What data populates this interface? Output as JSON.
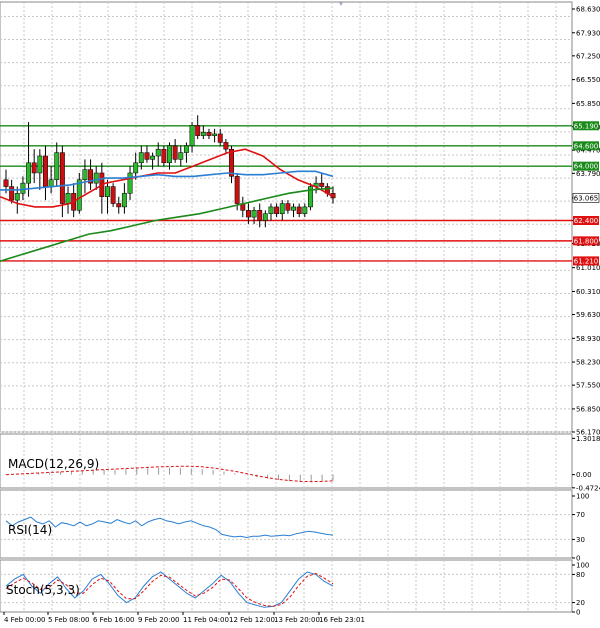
{
  "chart_data": [
    {
      "type": "candlestick",
      "panel": "price",
      "ylim": [
        56.17,
        68.63
      ],
      "y_ticks": [
        "68.630",
        "67.930",
        "67.250",
        "66.550",
        "65.850",
        "65.160",
        "64.470",
        "63.790",
        "63.065",
        "62.400",
        "61.720",
        "61.010",
        "60.310",
        "59.630",
        "58.930",
        "58.230",
        "57.550",
        "56.850",
        "56.170"
      ],
      "x_ticks": [
        "4 Feb 00:00",
        "5 Feb 08:00",
        "6 Feb 16:00",
        "9 Feb 20:00",
        "11 Feb 04:00",
        "12 Feb 12:00",
        "13 Feb 20:00",
        "16 Feb 23:01"
      ],
      "current_price": {
        "label": "63.065",
        "value": 63.065
      },
      "levels": [
        {
          "label": "65.190",
          "value": 65.19,
          "color": "#1a8a1a"
        },
        {
          "label": "64.600",
          "value": 64.6,
          "color": "#1a8a1a"
        },
        {
          "label": "64.000",
          "value": 64.0,
          "color": "#1a8a1a"
        },
        {
          "label": "62.400",
          "value": 62.4,
          "color": "#e01010"
        },
        {
          "label": "61.800",
          "value": 61.8,
          "color": "#e01010"
        },
        {
          "label": "61.210",
          "value": 61.21,
          "color": "#e01010"
        }
      ],
      "candles": [
        [
          63.6,
          63.9,
          63.2,
          63.4
        ],
        [
          63.4,
          63.6,
          62.9,
          63.0
        ],
        [
          63.0,
          63.4,
          62.6,
          63.2
        ],
        [
          63.2,
          63.7,
          63.0,
          63.5
        ],
        [
          63.5,
          65.3,
          63.1,
          64.1
        ],
        [
          64.1,
          64.5,
          63.5,
          63.8
        ],
        [
          63.8,
          64.5,
          63.3,
          64.3
        ],
        [
          64.3,
          64.6,
          63.0,
          63.4
        ],
        [
          63.4,
          64.0,
          63.2,
          63.6
        ],
        [
          63.6,
          64.7,
          63.4,
          64.4
        ],
        [
          64.4,
          64.6,
          62.5,
          62.9
        ],
        [
          62.9,
          63.4,
          62.6,
          63.2
        ],
        [
          63.2,
          63.5,
          62.5,
          62.7
        ],
        [
          62.7,
          63.8,
          62.6,
          63.6
        ],
        [
          63.6,
          64.2,
          63.2,
          63.9
        ],
        [
          63.9,
          64.2,
          63.3,
          63.5
        ],
        [
          63.5,
          64.0,
          63.3,
          63.8
        ],
        [
          63.8,
          64.1,
          62.6,
          63.1
        ],
        [
          63.1,
          63.6,
          62.6,
          63.4
        ],
        [
          63.4,
          63.5,
          62.8,
          62.9
        ],
        [
          62.9,
          63.1,
          62.6,
          62.8
        ],
        [
          62.8,
          63.5,
          62.6,
          63.2
        ],
        [
          63.2,
          64.0,
          63.0,
          63.8
        ],
        [
          63.8,
          64.4,
          63.6,
          64.1
        ],
        [
          64.1,
          64.6,
          63.9,
          64.4
        ],
        [
          64.4,
          64.6,
          64.1,
          64.2
        ],
        [
          64.2,
          64.4,
          63.9,
          64.3
        ],
        [
          64.3,
          64.7,
          64.0,
          64.5
        ],
        [
          64.5,
          64.6,
          64.0,
          64.1
        ],
        [
          64.1,
          64.7,
          63.9,
          64.6
        ],
        [
          64.6,
          64.8,
          64.1,
          64.2
        ],
        [
          64.2,
          64.6,
          64.0,
          64.4
        ],
        [
          64.4,
          64.7,
          64.1,
          64.6
        ],
        [
          64.6,
          65.3,
          64.4,
          65.2
        ],
        [
          65.2,
          65.5,
          64.8,
          64.9
        ],
        [
          64.9,
          65.2,
          64.8,
          65.0
        ],
        [
          65.0,
          65.1,
          64.8,
          64.9
        ],
        [
          64.9,
          65.1,
          64.7,
          64.95
        ],
        [
          64.95,
          65.1,
          64.6,
          64.7
        ],
        [
          64.7,
          64.8,
          64.4,
          64.5
        ],
        [
          64.5,
          64.6,
          63.5,
          63.7
        ],
        [
          63.7,
          63.8,
          62.7,
          62.9
        ],
        [
          62.9,
          63.1,
          62.5,
          62.7
        ],
        [
          62.7,
          62.9,
          62.3,
          62.5
        ],
        [
          62.5,
          62.8,
          62.3,
          62.7
        ],
        [
          62.7,
          62.9,
          62.2,
          62.4
        ],
        [
          62.4,
          62.7,
          62.2,
          62.6
        ],
        [
          62.6,
          62.9,
          62.4,
          62.8
        ],
        [
          62.8,
          62.9,
          62.5,
          62.6
        ],
        [
          62.6,
          63.0,
          62.4,
          62.9
        ],
        [
          62.9,
          63.0,
          62.6,
          62.7
        ],
        [
          62.7,
          62.9,
          62.5,
          62.8
        ],
        [
          62.8,
          62.9,
          62.5,
          62.6
        ],
        [
          62.6,
          62.9,
          62.5,
          62.8
        ],
        [
          62.8,
          63.5,
          62.7,
          63.4
        ],
        [
          63.4,
          63.7,
          63.2,
          63.5
        ],
        [
          63.5,
          63.8,
          63.3,
          63.4
        ],
        [
          63.4,
          63.5,
          63.1,
          63.2
        ],
        [
          63.2,
          63.4,
          62.9,
          63.065
        ]
      ],
      "series": [
        {
          "name": "",
          "color": "#e01010",
          "values": [
            63.1,
            62.9,
            62.8,
            62.8,
            62.9,
            63.2,
            63.5,
            63.6,
            63.7,
            63.8,
            63.8,
            64.0,
            64.2,
            64.4,
            64.5,
            64.3,
            63.9,
            63.6,
            63.4,
            63.1
          ]
        },
        {
          "name": "",
          "color": "#2a7fd4",
          "values": [
            63.3,
            63.3,
            63.35,
            63.4,
            63.45,
            63.55,
            63.65,
            63.65,
            63.7,
            63.75,
            63.7,
            63.7,
            63.75,
            63.8,
            63.75,
            63.75,
            63.8,
            63.85,
            63.85,
            63.7
          ]
        },
        {
          "name": "",
          "color": "#1a8a1a",
          "values": [
            61.2,
            61.4,
            61.6,
            61.8,
            62.0,
            62.1,
            62.25,
            62.4,
            62.5,
            62.6,
            62.75,
            62.9,
            63.05,
            63.2,
            63.3,
            63.35
          ]
        }
      ]
    },
    {
      "type": "histogram",
      "panel": "macd",
      "title": "MACD(12,26,9)",
      "y_ticks": [
        "1.3018",
        "0.00",
        "-0.4724"
      ],
      "ylim": [
        -0.55,
        1.35
      ],
      "values": [
        0.02,
        0.03,
        0.05,
        0.06,
        0.08,
        0.1,
        0.11,
        0.13,
        0.15,
        0.17,
        0.18,
        0.2,
        0.22,
        0.23,
        0.24,
        0.25,
        0.24,
        0.22,
        0.2,
        0.16,
        0.11,
        0.05,
        -0.02,
        -0.08,
        -0.14,
        -0.19,
        -0.23,
        -0.26,
        -0.27,
        -0.25,
        -0.21
      ],
      "signal": [
        0.0,
        0.02,
        0.04,
        0.06,
        0.08,
        0.1,
        0.12,
        0.14,
        0.16,
        0.18,
        0.2,
        0.22,
        0.24,
        0.26,
        0.28,
        0.29,
        0.3,
        0.3,
        0.28,
        0.24,
        0.18,
        0.12,
        0.04,
        -0.04,
        -0.11,
        -0.17,
        -0.21,
        -0.24,
        -0.25,
        -0.24,
        -0.22
      ]
    },
    {
      "type": "line",
      "panel": "rsi",
      "title": "RSI(14)",
      "y_ticks": [
        "100",
        "70",
        "30",
        "0"
      ],
      "ylim": [
        0,
        100
      ],
      "series": [
        {
          "name": "",
          "color": "#2a7fd4",
          "values": [
            60,
            52,
            58,
            62,
            66,
            58,
            55,
            60,
            50,
            57,
            55,
            52,
            58,
            52,
            55,
            60,
            58,
            56,
            62,
            58,
            55,
            60,
            52,
            58,
            62,
            64,
            60,
            58,
            55,
            58,
            60,
            56,
            52,
            50,
            46,
            38,
            36,
            34,
            35,
            33,
            35,
            35,
            37,
            35,
            36,
            37,
            36,
            39,
            41,
            43,
            42,
            40,
            38,
            37
          ]
        }
      ]
    },
    {
      "type": "line",
      "panel": "stoch",
      "title": "Stoch(5,3,3)",
      "y_ticks": [
        "100",
        "80",
        "20",
        "0"
      ],
      "ylim": [
        0,
        100
      ],
      "series": [
        {
          "name": "",
          "color": "#2a7fd4",
          "values": [
            55,
            70,
            80,
            55,
            40,
            60,
            75,
            50,
            30,
            45,
            70,
            80,
            60,
            35,
            20,
            30,
            55,
            75,
            85,
            70,
            55,
            40,
            30,
            45,
            60,
            78,
            65,
            40,
            20,
            15,
            10,
            12,
            20,
            45,
            70,
            85,
            80,
            65,
            55
          ]
        },
        {
          "name": "",
          "color": "#e01010",
          "values": [
            50,
            62,
            72,
            62,
            48,
            52,
            68,
            58,
            40,
            40,
            58,
            72,
            66,
            45,
            28,
            28,
            45,
            65,
            78,
            74,
            60,
            46,
            34,
            40,
            52,
            70,
            68,
            50,
            30,
            20,
            14,
            12,
            16,
            32,
            56,
            76,
            82,
            72,
            60
          ]
        }
      ]
    }
  ]
}
